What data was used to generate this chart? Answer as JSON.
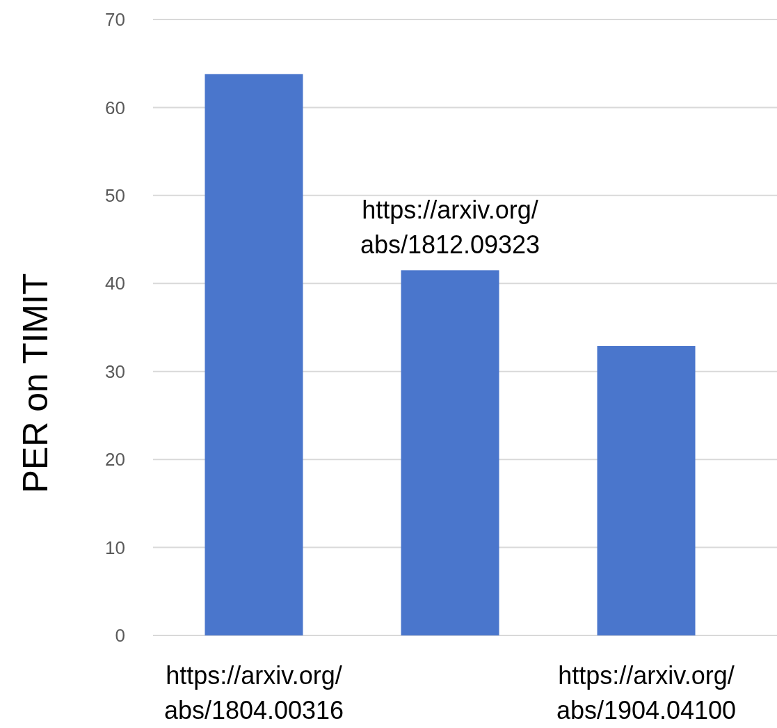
{
  "chart_data": {
    "type": "bar",
    "ylabel": "PER on TIMIT",
    "categories": [
      "https://arxiv.org/abs/1804.00316",
      "https://arxiv.org/abs/1812.09323",
      "https://arxiv.org/abs/1904.04100"
    ],
    "values": [
      63.8,
      41.5,
      32.9
    ],
    "color": "#4a76cc",
    "ylim": [
      0,
      70
    ],
    "yticks": [
      0,
      10,
      20,
      30,
      40,
      50,
      60,
      70
    ],
    "grid": "y"
  }
}
